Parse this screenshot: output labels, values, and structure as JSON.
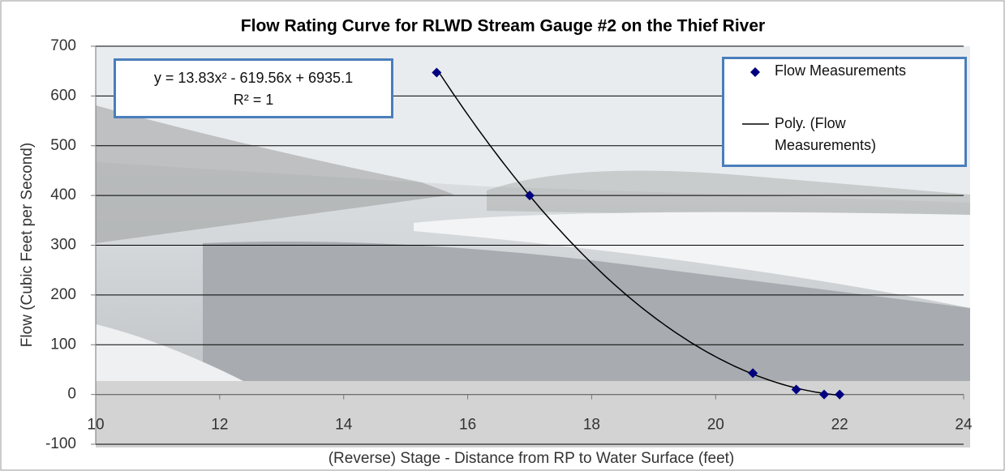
{
  "chart_data": {
    "type": "scatter",
    "title": "Flow Rating Curve for RLWD Stream Gauge #2 on the Thief River",
    "x_label": "(Reverse) Stage - Distance from RP to Water Surface (feet)",
    "y_label": "Flow (Cubic Feet per Second)",
    "series": [
      {
        "name": "Flow Measurements",
        "color": "#00007f",
        "x": [
          15.5,
          17,
          20.6,
          21.3,
          21.75,
          22
        ],
        "values": [
          647,
          400,
          43,
          10,
          0,
          0
        ]
      }
    ],
    "trendline": {
      "name": "Poly. (Flow Measurements)",
      "color": "#000000",
      "coefficients": [
        13.83,
        -619.56,
        6935.1
      ],
      "equation": "y = 13.83x² - 619.56x + 6935.1",
      "r_squared": "R² = 1"
    },
    "xlim": [
      10,
      24
    ],
    "xticks": [
      10,
      12,
      14,
      16,
      18,
      20,
      22,
      24
    ],
    "ylim": [
      -100,
      700
    ],
    "yticks": [
      -100,
      0,
      100,
      200,
      300,
      400,
      500,
      600,
      700
    ],
    "grid": true,
    "legend": "top-right"
  }
}
